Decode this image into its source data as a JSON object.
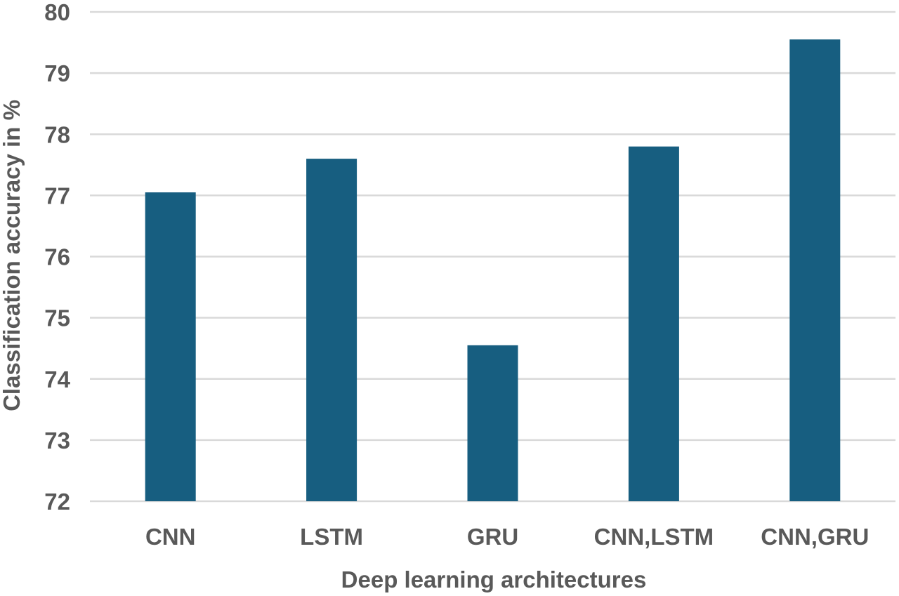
{
  "chart_data": {
    "type": "bar",
    "title": "",
    "xlabel": "Deep learning architectures",
    "ylabel": "Classification accuracy in %",
    "categories": [
      "CNN",
      "LSTM",
      "GRU",
      "CNN,LSTM",
      "CNN,GRU"
    ],
    "values": [
      77.05,
      77.6,
      74.55,
      77.8,
      79.55
    ],
    "ylim": [
      72,
      80
    ],
    "yticks": [
      72,
      73,
      74,
      75,
      76,
      77,
      78,
      79,
      80
    ],
    "grid": true,
    "legend": "none",
    "bar_color": "#175e80",
    "grid_color": "#d9d9d9",
    "text_color": "#595959"
  }
}
